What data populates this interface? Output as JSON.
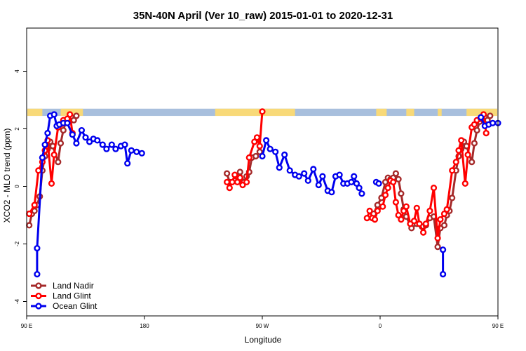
{
  "chart_data": {
    "type": "line",
    "title": "35N-40N April (Ver 10_raw)   2015-01-01 to 2020-12-31",
    "xlabel": "Longitude",
    "ylabel": "XCO2 - MLO trend (ppm)",
    "xlim": [
      90,
      450
    ],
    "ylim": [
      -4.5,
      5.5
    ],
    "x_ticks": [
      {
        "value": 90,
        "label": "90 E"
      },
      {
        "value": 180,
        "label": "180"
      },
      {
        "value": 270,
        "label": "90 W"
      },
      {
        "value": 360,
        "label": "0"
      },
      {
        "value": 450,
        "label": "90 E"
      },
      {
        "value": 540,
        "label": "180"
      }
    ],
    "y_ticks": [
      {
        "value": -4,
        "label": "-4"
      },
      {
        "value": -2,
        "label": "-2"
      },
      {
        "value": 0,
        "label": "0"
      },
      {
        "value": 2,
        "label": "2"
      },
      {
        "value": 4,
        "label": "4"
      }
    ],
    "legend_position": "bottom-left",
    "surface_band": {
      "y_range": [
        2.45,
        2.7
      ],
      "colors": {
        "ocean": "#a8bfdd",
        "land": "#f8d978"
      },
      "land_segments": [
        [
          90,
          102
        ],
        [
          116,
          133
        ],
        [
          234,
          295
        ],
        [
          357,
          365
        ],
        [
          380,
          386
        ],
        [
          404,
          407
        ],
        [
          426,
          475
        ],
        [
          530,
          540
        ]
      ]
    },
    "series": [
      {
        "name": "Land Nadir",
        "color": "#a52a2a",
        "segments": [
          [
            [
              92,
              -1.35
            ],
            [
              94,
              -0.95
            ],
            [
              96,
              -0.85
            ],
            [
              98,
              -0.65
            ],
            [
              100,
              -0.35
            ],
            [
              102,
              0.55
            ],
            [
              104,
              1.05
            ],
            [
              106,
              1.3
            ],
            [
              108,
              1.55
            ],
            [
              110,
              1.4
            ],
            [
              114,
              0.85
            ],
            [
              116,
              1.5
            ],
            [
              118,
              1.95
            ],
            [
              120,
              2.25
            ],
            [
              122,
              2.35
            ],
            [
              124,
              2.4
            ],
            [
              126,
              2.3
            ],
            [
              128,
              2.45
            ]
          ],
          [
            [
              243,
              0.45
            ],
            [
              245,
              0.15
            ],
            [
              249,
              0.2
            ],
            [
              251,
              0.35
            ],
            [
              253,
              0.5
            ],
            [
              256,
              0.15
            ],
            [
              258,
              0.35
            ],
            [
              260,
              0.5
            ],
            [
              262,
              1.0
            ],
            [
              265,
              1.05
            ],
            [
              268,
              1.2
            ]
          ],
          [
            [
              355,
              -0.95
            ],
            [
              358,
              -0.65
            ],
            [
              361,
              -0.4
            ],
            [
              364,
              0.15
            ],
            [
              366,
              0.3
            ],
            [
              368,
              0.25
            ],
            [
              370,
              0.3
            ],
            [
              372,
              0.45
            ],
            [
              374,
              0.25
            ],
            [
              376,
              -0.25
            ],
            [
              378,
              -0.8
            ],
            [
              380,
              -1.05
            ],
            [
              384,
              -1.45
            ],
            [
              388,
              -1.3
            ],
            [
              392,
              -1.4
            ],
            [
              395,
              -1.35
            ],
            [
              398,
              -1.1
            ],
            [
              401,
              -1.05
            ],
            [
              404,
              -2.1
            ],
            [
              406,
              -1.45
            ],
            [
              409,
              -1.35
            ],
            [
              411,
              -1.0
            ],
            [
              413,
              -0.85
            ],
            [
              415,
              -0.4
            ],
            [
              418,
              0.55
            ],
            [
              420,
              1.05
            ],
            [
              422,
              1.3
            ],
            [
              424,
              1.55
            ],
            [
              426,
              1.4
            ],
            [
              430,
              0.85
            ],
            [
              432,
              1.5
            ],
            [
              434,
              1.95
            ],
            [
              436,
              2.25
            ],
            [
              438,
              2.35
            ],
            [
              440,
              2.4
            ],
            [
              442,
              2.3
            ],
            [
              444,
              2.45
            ]
          ]
        ]
      },
      {
        "name": "Land Glint",
        "color": "#ff0000",
        "segments": [
          [
            [
              92,
              -0.95
            ],
            [
              96,
              -0.65
            ],
            [
              99,
              0.55
            ],
            [
              102,
              0.85
            ],
            [
              104,
              1.25
            ],
            [
              106,
              1.6
            ],
            [
              109,
              0.1
            ],
            [
              111,
              1.1
            ],
            [
              114,
              2.05
            ],
            [
              116,
              2.15
            ],
            [
              118,
              2.3
            ],
            [
              121,
              2.35
            ],
            [
              123,
              2.5
            ],
            [
              125,
              1.85
            ]
          ],
          [
            [
              243,
              0.15
            ],
            [
              245,
              -0.05
            ],
            [
              247,
              0.15
            ],
            [
              249,
              0.4
            ],
            [
              251,
              0.15
            ],
            [
              253,
              0.3
            ],
            [
              255,
              0.05
            ],
            [
              258,
              0.15
            ],
            [
              260,
              1.0
            ],
            [
              264,
              1.55
            ],
            [
              266,
              1.7
            ],
            [
              268,
              1.4
            ],
            [
              270,
              2.6
            ]
          ],
          [
            [
              350,
              -1.1
            ],
            [
              352,
              -0.85
            ],
            [
              354,
              -1.1
            ],
            [
              356,
              -1.15
            ],
            [
              358,
              -0.85
            ],
            [
              362,
              -0.7
            ],
            [
              364,
              -0.3
            ],
            [
              366,
              -0.05
            ],
            [
              368,
              0.2
            ],
            [
              370,
              0.15
            ],
            [
              372,
              -0.55
            ],
            [
              374,
              -1.0
            ],
            [
              376,
              -1.15
            ],
            [
              378,
              -0.85
            ],
            [
              380,
              -0.7
            ],
            [
              383,
              -1.3
            ],
            [
              386,
              -1.2
            ],
            [
              388,
              -0.75
            ],
            [
              390,
              -1.3
            ],
            [
              393,
              -1.6
            ],
            [
              395,
              -1.3
            ],
            [
              398,
              -0.85
            ],
            [
              401,
              -0.05
            ],
            [
              404,
              -1.8
            ],
            [
              406,
              -1.15
            ],
            [
              409,
              -0.95
            ],
            [
              411,
              -0.8
            ],
            [
              415,
              0.55
            ],
            [
              418,
              0.85
            ],
            [
              420,
              1.25
            ],
            [
              422,
              1.6
            ],
            [
              425,
              0.1
            ],
            [
              427,
              1.1
            ],
            [
              430,
              2.05
            ],
            [
              432,
              2.15
            ],
            [
              434,
              2.3
            ],
            [
              437,
              2.35
            ],
            [
              439,
              2.5
            ],
            [
              441,
              1.85
            ]
          ]
        ]
      },
      {
        "name": "Ocean Glint",
        "color": "#0000ee",
        "segments": [
          [
            [
              98,
              -3.05
            ],
            [
              98,
              -2.15
            ],
            [
              102,
              1.0
            ],
            [
              104,
              1.45
            ],
            [
              106,
              1.85
            ],
            [
              108,
              2.45
            ],
            [
              111,
              2.5
            ],
            [
              113,
              2.1
            ],
            [
              115,
              2.15
            ],
            [
              118,
              2.2
            ],
            [
              121,
              2.2
            ],
            [
              125,
              1.8
            ],
            [
              128,
              1.5
            ],
            [
              132,
              1.95
            ],
            [
              135,
              1.7
            ],
            [
              138,
              1.55
            ],
            [
              141,
              1.65
            ],
            [
              144,
              1.6
            ],
            [
              148,
              1.45
            ],
            [
              151,
              1.3
            ],
            [
              155,
              1.45
            ],
            [
              158,
              1.3
            ],
            [
              162,
              1.4
            ],
            [
              165,
              1.45
            ],
            [
              167,
              0.8
            ],
            [
              170,
              1.25
            ],
            [
              174,
              1.2
            ],
            [
              178,
              1.15
            ]
          ],
          [
            [
              270,
              1.05
            ],
            [
              273,
              1.6
            ],
            [
              276,
              1.3
            ],
            [
              280,
              1.2
            ],
            [
              283,
              0.65
            ],
            [
              287,
              1.1
            ],
            [
              291,
              0.55
            ],
            [
              295,
              0.4
            ],
            [
              298,
              0.35
            ],
            [
              302,
              0.45
            ],
            [
              305,
              0.2
            ],
            [
              309,
              0.6
            ],
            [
              313,
              0.05
            ],
            [
              316,
              0.35
            ],
            [
              320,
              -0.15
            ],
            [
              323,
              -0.2
            ],
            [
              326,
              0.35
            ],
            [
              329,
              0.4
            ],
            [
              332,
              0.1
            ],
            [
              335,
              0.1
            ],
            [
              338,
              0.15
            ],
            [
              340,
              0.35
            ],
            [
              342,
              0.1
            ],
            [
              344,
              -0.05
            ],
            [
              346,
              -0.25
            ]
          ],
          [
            [
              357,
              0.15
            ],
            [
              359,
              0.1
            ]
          ],
          [
            [
              408,
              -2.2
            ],
            [
              408,
              -3.05
            ]
          ],
          [
            [
              437,
              2.4
            ],
            [
              440,
              2.1
            ],
            [
              443,
              2.15
            ],
            [
              446,
              2.2
            ],
            [
              450,
              2.2
            ]
          ]
        ]
      }
    ]
  }
}
